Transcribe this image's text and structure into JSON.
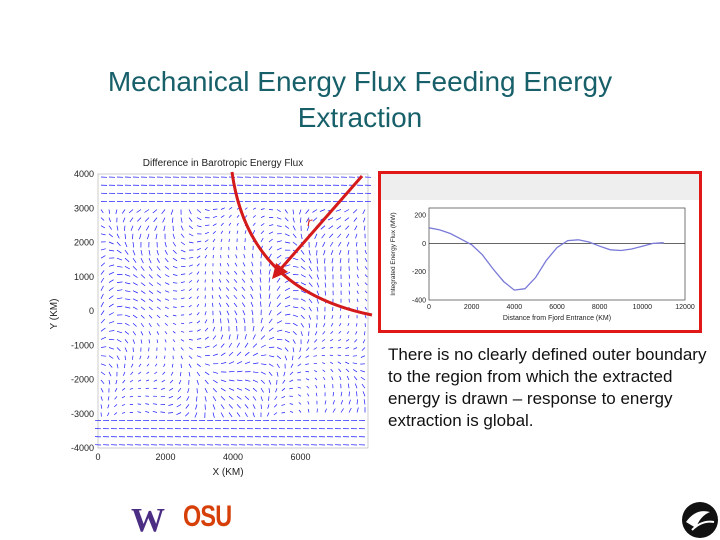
{
  "slide": {
    "title_line1": "Mechanical Energy Flux Feeding Energy",
    "title_line2": "Extraction",
    "body": "There is no clearly defined outer boundary to the region from which the extracted energy is drawn – response to energy extraction is global."
  },
  "annotation": {
    "r_label": "r"
  },
  "logos": {
    "osu": "OSU",
    "uw": "W"
  },
  "colors": {
    "title": "#17606a",
    "frame": "#e01818",
    "arrow": "#d41a1a",
    "vectors": "#1a1aff",
    "osu": "#d73f09",
    "uw": "#4b2e83"
  },
  "chart_data": [
    {
      "type": "quiver",
      "title": "Difference in Barotropic Energy Flux",
      "xlabel": "X (KM)",
      "ylabel": "Y (KM)",
      "xticks": [
        "0",
        "2000",
        "4000",
        "6000"
      ],
      "yticks": [
        "4000",
        "3000",
        "2000",
        "1000",
        "0",
        "-1000",
        "-2000",
        "-3000",
        "-4000"
      ],
      "xlim": [
        0,
        8000
      ],
      "ylim": [
        -4000,
        4000
      ],
      "grid": false
    },
    {
      "type": "line",
      "xlabel": "Distance from Fjord Entrance (KM)",
      "ylabel": "Integrated Energy Flux (MW)",
      "xticks": [
        "0",
        "2000",
        "4000",
        "6000",
        "8000",
        "10000",
        "12000"
      ],
      "yticks": [
        "200",
        "0",
        "-200",
        "-400"
      ],
      "xlim": [
        0,
        12000
      ],
      "ylim": [
        -400,
        250
      ],
      "x": [
        0,
        500,
        1000,
        1500,
        2000,
        2500,
        3000,
        3500,
        4000,
        4500,
        5000,
        5500,
        6000,
        6500,
        7000,
        7500,
        8000,
        8500,
        9000,
        9500,
        10000,
        10500,
        11000
      ],
      "y": [
        110,
        95,
        70,
        30,
        -10,
        -80,
        -180,
        -270,
        -330,
        -320,
        -240,
        -120,
        -30,
        20,
        25,
        10,
        -20,
        -45,
        -50,
        -40,
        -20,
        0,
        5
      ],
      "grid": false
    }
  ]
}
